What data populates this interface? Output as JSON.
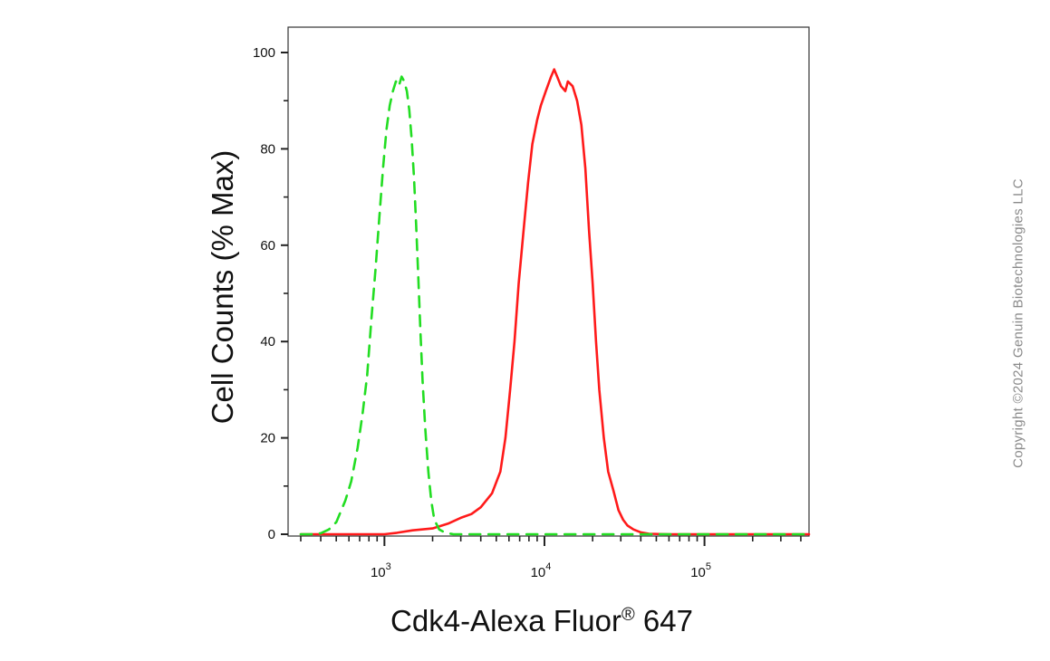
{
  "chart_data": {
    "type": "area",
    "xlabel": "Cdk4-Alexa Fluor",
    "xlabel_mark": "®",
    "xlabel_suffix": " 647",
    "ylabel": "Cell Counts (% Max)",
    "x_scale": "log",
    "xlim": [
      250,
      450000
    ],
    "ylim": [
      0,
      105
    ],
    "y_ticks": [
      "0",
      "20",
      "40",
      "60",
      "80",
      "100"
    ],
    "x_ticks": [
      {
        "base": "10",
        "exp": "3",
        "value": 1000
      },
      {
        "base": "10",
        "exp": "4",
        "value": 10000
      },
      {
        "base": "10",
        "exp": "5",
        "value": 100000
      }
    ],
    "grid": false,
    "series": [
      {
        "color": "#ff1a1a",
        "style": "solid",
        "points": [
          [
            300,
            0
          ],
          [
            700,
            0
          ],
          [
            1000,
            0
          ],
          [
            1200,
            0.3
          ],
          [
            1500,
            0.8
          ],
          [
            2000,
            1.2
          ],
          [
            2500,
            2.2
          ],
          [
            3000,
            3.4
          ],
          [
            3500,
            4.2
          ],
          [
            4000,
            5.6
          ],
          [
            4700,
            8.5
          ],
          [
            5300,
            13
          ],
          [
            5700,
            20
          ],
          [
            6100,
            30
          ],
          [
            6500,
            40
          ],
          [
            6900,
            52
          ],
          [
            7400,
            63
          ],
          [
            7900,
            73
          ],
          [
            8400,
            81
          ],
          [
            9000,
            86
          ],
          [
            9500,
            89
          ],
          [
            10200,
            92
          ],
          [
            11000,
            95
          ],
          [
            11500,
            96.5
          ],
          [
            12000,
            95
          ],
          [
            12700,
            93
          ],
          [
            13500,
            92
          ],
          [
            14000,
            94
          ],
          [
            15000,
            93
          ],
          [
            16000,
            90
          ],
          [
            17000,
            85
          ],
          [
            18000,
            76
          ],
          [
            19000,
            63
          ],
          [
            20000,
            52
          ],
          [
            21000,
            40
          ],
          [
            22000,
            30
          ],
          [
            23500,
            20
          ],
          [
            25000,
            13
          ],
          [
            27000,
            9
          ],
          [
            29000,
            5
          ],
          [
            31000,
            3
          ],
          [
            33000,
            1.8
          ],
          [
            36000,
            1
          ],
          [
            40000,
            0.4
          ],
          [
            45000,
            0.1
          ],
          [
            60000,
            0
          ],
          [
            450000,
            0
          ]
        ]
      },
      {
        "color": "#22dd22",
        "style": "dashed",
        "points": [
          [
            300,
            0
          ],
          [
            350,
            0
          ],
          [
            400,
            0.2
          ],
          [
            450,
            1
          ],
          [
            500,
            2.5
          ],
          [
            570,
            7
          ],
          [
            620,
            11
          ],
          [
            680,
            18
          ],
          [
            730,
            25
          ],
          [
            780,
            33
          ],
          [
            830,
            45
          ],
          [
            880,
            55
          ],
          [
            930,
            66
          ],
          [
            980,
            76
          ],
          [
            1030,
            84
          ],
          [
            1080,
            89
          ],
          [
            1130,
            92
          ],
          [
            1180,
            94
          ],
          [
            1230,
            93
          ],
          [
            1280,
            95
          ],
          [
            1330,
            94
          ],
          [
            1380,
            92
          ],
          [
            1430,
            88
          ],
          [
            1480,
            82
          ],
          [
            1530,
            74
          ],
          [
            1580,
            64
          ],
          [
            1630,
            53
          ],
          [
            1680,
            42
          ],
          [
            1730,
            32
          ],
          [
            1800,
            22
          ],
          [
            1880,
            13
          ],
          [
            1960,
            7
          ],
          [
            2050,
            3
          ],
          [
            2200,
            1
          ],
          [
            2400,
            0.3
          ],
          [
            2700,
            0
          ],
          [
            450000,
            0
          ]
        ]
      }
    ]
  },
  "watermark": {
    "copyright": "Copyright ©2024 Genuin Biotechnologies LLC"
  }
}
